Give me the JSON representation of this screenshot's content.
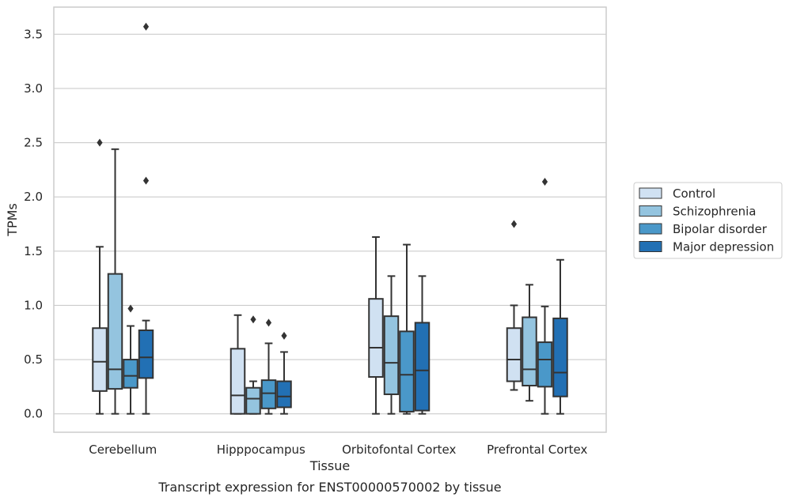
{
  "caption": "Transcript expression for ENST00000570002 by tissue",
  "colors": {
    "Control": "#d0e1f2",
    "Schizophrenia": "#94c4df",
    "Bipolar disorder": "#4a98c9",
    "Major depression": "#2270b4",
    "line": "#333333",
    "grid": "#cccccc",
    "frame": "#cccccc"
  },
  "chart_data": {
    "type": "box",
    "xlabel": "Tissue",
    "ylabel": "TPMs",
    "categories": [
      "Cerebellum",
      "Hipppocampus",
      "Orbitofontal Cortex",
      "Prefrontal Cortex"
    ],
    "ylim": [
      -0.17,
      3.75
    ],
    "yticks": [
      0.0,
      0.5,
      1.0,
      1.5,
      2.0,
      2.5,
      3.0,
      3.5
    ],
    "ytick_labels": [
      "0.0",
      "0.5",
      "1.0",
      "1.5",
      "2.0",
      "2.5",
      "3.0",
      "3.5"
    ],
    "grid": "horizontal",
    "legend_position": "right-outside",
    "series": [
      {
        "name": "Control",
        "boxes": [
          {
            "whislo": 0.0,
            "q1": 0.21,
            "med": 0.48,
            "q3": 0.79,
            "whishi": 1.54,
            "fliers": [
              2.5
            ]
          },
          {
            "whislo": 0.0,
            "q1": 0.0,
            "med": 0.17,
            "q3": 0.6,
            "whishi": 0.91,
            "fliers": []
          },
          {
            "whislo": 0.0,
            "q1": 0.34,
            "med": 0.61,
            "q3": 1.06,
            "whishi": 1.63,
            "fliers": []
          },
          {
            "whislo": 0.22,
            "q1": 0.3,
            "med": 0.5,
            "q3": 0.79,
            "whishi": 1.0,
            "fliers": [
              1.75
            ]
          }
        ]
      },
      {
        "name": "Schizophrenia",
        "boxes": [
          {
            "whislo": 0.0,
            "q1": 0.23,
            "med": 0.41,
            "q3": 1.29,
            "whishi": 2.44,
            "fliers": []
          },
          {
            "whislo": 0.0,
            "q1": 0.0,
            "med": 0.14,
            "q3": 0.24,
            "whishi": 0.3,
            "fliers": [
              0.87
            ]
          },
          {
            "whislo": 0.0,
            "q1": 0.18,
            "med": 0.47,
            "q3": 0.9,
            "whishi": 1.27,
            "fliers": []
          },
          {
            "whislo": 0.12,
            "q1": 0.26,
            "med": 0.41,
            "q3": 0.89,
            "whishi": 1.19,
            "fliers": []
          }
        ]
      },
      {
        "name": "Bipolar disorder",
        "boxes": [
          {
            "whislo": 0.0,
            "q1": 0.24,
            "med": 0.35,
            "q3": 0.5,
            "whishi": 0.81,
            "fliers": [
              0.97
            ]
          },
          {
            "whislo": 0.0,
            "q1": 0.05,
            "med": 0.19,
            "q3": 0.31,
            "whishi": 0.65,
            "fliers": [
              0.84
            ]
          },
          {
            "whislo": 0.0,
            "q1": 0.02,
            "med": 0.36,
            "q3": 0.76,
            "whishi": 1.56,
            "fliers": []
          },
          {
            "whislo": 0.0,
            "q1": 0.25,
            "med": 0.5,
            "q3": 0.66,
            "whishi": 0.99,
            "fliers": [
              2.14
            ]
          }
        ]
      },
      {
        "name": "Major depression",
        "boxes": [
          {
            "whislo": 0.0,
            "q1": 0.33,
            "med": 0.52,
            "q3": 0.77,
            "whishi": 0.86,
            "fliers": [
              2.15,
              3.57
            ]
          },
          {
            "whislo": 0.0,
            "q1": 0.06,
            "med": 0.16,
            "q3": 0.3,
            "whishi": 0.57,
            "fliers": [
              0.72
            ]
          },
          {
            "whislo": 0.0,
            "q1": 0.03,
            "med": 0.4,
            "q3": 0.84,
            "whishi": 1.27,
            "fliers": []
          },
          {
            "whislo": 0.0,
            "q1": 0.16,
            "med": 0.38,
            "q3": 0.88,
            "whishi": 1.42,
            "fliers": []
          }
        ]
      }
    ]
  }
}
